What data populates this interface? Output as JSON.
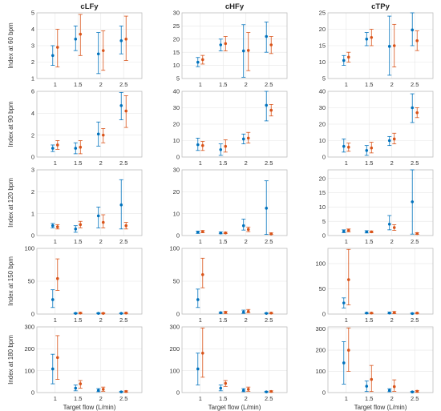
{
  "figure": {
    "colors": {
      "series_a": "#0072BD",
      "series_b": "#D95319"
    }
  },
  "chart_data": [
    {
      "type": "scatter",
      "title": "cLFy",
      "ylabel": "Index at 60 bpm",
      "xlabel": "",
      "x": [
        1,
        1.5,
        2,
        2.5
      ],
      "ylim": [
        1,
        5
      ],
      "yticks": [
        1,
        2,
        3,
        4,
        5
      ],
      "series": [
        {
          "values": [
            2.4,
            3.4,
            2.5,
            3.3
          ],
          "low": [
            1.8,
            2.7,
            1.3,
            2.5
          ],
          "high": [
            3.0,
            4.2,
            3.8,
            4.2
          ]
        },
        {
          "values": [
            2.9,
            3.7,
            2.7,
            3.4
          ],
          "low": [
            1.7,
            2.4,
            1.5,
            2.1
          ],
          "high": [
            4.0,
            4.9,
            3.9,
            4.8
          ]
        }
      ]
    },
    {
      "type": "scatter",
      "title": "cHFy",
      "ylabel": "",
      "xlabel": "",
      "x": [
        1,
        1.5,
        2,
        2.5
      ],
      "ylim": [
        5,
        30
      ],
      "yticks": [
        5,
        10,
        15,
        20,
        25,
        30
      ],
      "series": [
        {
          "values": [
            11.2,
            17.8,
            15.5,
            21.0
          ],
          "low": [
            9.5,
            15.5,
            5.5,
            15.0
          ],
          "high": [
            13.0,
            20.0,
            25.5,
            26.5
          ]
        },
        {
          "values": [
            12.2,
            18.3,
            15.7,
            17.8
          ],
          "low": [
            10.5,
            15.5,
            8.0,
            14.5
          ],
          "high": [
            13.8,
            21.0,
            22.5,
            21.0
          ]
        }
      ]
    },
    {
      "type": "scatter",
      "title": "cTPy",
      "ylabel": "",
      "xlabel": "",
      "x": [
        1,
        1.5,
        2,
        2.5
      ],
      "ylim": [
        5,
        25
      ],
      "yticks": [
        5,
        10,
        15,
        20,
        25
      ],
      "series": [
        {
          "values": [
            10.5,
            17.0,
            14.8,
            19.8
          ],
          "low": [
            9.0,
            15.0,
            6.0,
            15.0
          ],
          "high": [
            12.0,
            19.0,
            24.0,
            25.0
          ]
        },
        {
          "values": [
            11.5,
            17.5,
            15.0,
            16.5
          ],
          "low": [
            10.0,
            15.0,
            8.5,
            13.5
          ],
          "high": [
            13.0,
            20.0,
            21.5,
            19.5
          ]
        }
      ]
    },
    {
      "type": "scatter",
      "title": "",
      "ylabel": "Index at 90 bpm",
      "xlabel": "",
      "x": [
        1,
        1.5,
        2,
        2.5
      ],
      "ylim": [
        0,
        6
      ],
      "yticks": [
        0,
        2,
        4,
        6
      ],
      "series": [
        {
          "values": [
            0.8,
            0.8,
            2.1,
            4.7
          ],
          "low": [
            0.5,
            0.3,
            1.0,
            3.4
          ],
          "high": [
            1.1,
            1.3,
            3.2,
            5.9
          ]
        },
        {
          "values": [
            1.1,
            0.9,
            2.0,
            4.2
          ],
          "low": [
            0.7,
            0.3,
            1.3,
            2.7
          ],
          "high": [
            1.5,
            1.5,
            2.6,
            5.6
          ]
        }
      ]
    },
    {
      "type": "scatter",
      "title": "",
      "ylabel": "",
      "xlabel": "",
      "x": [
        1,
        1.5,
        2,
        2.5
      ],
      "ylim": [
        0,
        40
      ],
      "yticks": [
        0,
        10,
        20,
        30,
        40
      ],
      "series": [
        {
          "values": [
            7.5,
            4.5,
            11.0,
            31.5
          ],
          "low": [
            4.0,
            1.0,
            8.0,
            22.0
          ],
          "high": [
            11.5,
            8.0,
            14.0,
            41.0
          ]
        },
        {
          "values": [
            7.0,
            6.5,
            11.5,
            28.5
          ],
          "low": [
            4.0,
            3.0,
            8.5,
            25.0
          ],
          "high": [
            9.5,
            10.5,
            15.0,
            32.0
          ]
        }
      ]
    },
    {
      "type": "scatter",
      "title": "",
      "ylabel": "",
      "xlabel": "",
      "x": [
        1,
        1.5,
        2,
        2.5
      ],
      "ylim": [
        0,
        40
      ],
      "yticks": [
        0,
        10,
        20,
        30,
        40
      ],
      "series": [
        {
          "values": [
            6.5,
            4.0,
            10.0,
            30.0
          ],
          "low": [
            3.0,
            1.0,
            7.0,
            21.0
          ],
          "high": [
            11.0,
            7.0,
            12.5,
            38.5
          ]
        },
        {
          "values": [
            6.0,
            5.5,
            11.0,
            27.0
          ],
          "low": [
            3.5,
            2.5,
            8.0,
            24.0
          ],
          "high": [
            8.5,
            9.0,
            14.5,
            30.0
          ]
        }
      ]
    },
    {
      "type": "scatter",
      "title": "",
      "ylabel": "Index at 120 bpm",
      "xlabel": "",
      "x": [
        1,
        1.5,
        2,
        2.5
      ],
      "ylim": [
        0,
        3
      ],
      "yticks": [
        0,
        1,
        2,
        3
      ],
      "series": [
        {
          "values": [
            0.45,
            0.3,
            0.9,
            1.4
          ],
          "low": [
            0.35,
            0.15,
            0.35,
            0.3
          ],
          "high": [
            0.55,
            0.45,
            1.3,
            2.55
          ]
        },
        {
          "values": [
            0.4,
            0.5,
            0.6,
            0.45
          ],
          "low": [
            0.3,
            0.35,
            0.35,
            0.3
          ],
          "high": [
            0.5,
            0.65,
            0.95,
            0.6
          ]
        }
      ]
    },
    {
      "type": "scatter",
      "title": "",
      "ylabel": "",
      "xlabel": "",
      "x": [
        1,
        1.5,
        2,
        2.5
      ],
      "ylim": [
        0,
        30
      ],
      "yticks": [
        0,
        10,
        20,
        30
      ],
      "series": [
        {
          "values": [
            1.5,
            1.2,
            4.5,
            12.5
          ],
          "low": [
            1.0,
            0.8,
            2.5,
            0.5
          ],
          "high": [
            2.0,
            1.6,
            7.5,
            25.0
          ]
        },
        {
          "values": [
            1.8,
            1.2,
            2.8,
            0.8
          ],
          "low": [
            1.3,
            0.9,
            1.8,
            0.5
          ],
          "high": [
            2.3,
            1.5,
            3.8,
            1.2
          ]
        }
      ]
    },
    {
      "type": "scatter",
      "title": "",
      "ylabel": "",
      "xlabel": "",
      "x": [
        1,
        1.5,
        2,
        2.5
      ],
      "ylim": [
        0,
        23
      ],
      "yticks": [
        0,
        5,
        10,
        15,
        20
      ],
      "series": [
        {
          "values": [
            1.5,
            1.3,
            4.0,
            11.8
          ],
          "low": [
            1.0,
            0.9,
            2.0,
            0.5
          ],
          "high": [
            2.0,
            1.7,
            7.0,
            23.0
          ]
        },
        {
          "values": [
            1.8,
            1.3,
            2.8,
            0.7
          ],
          "low": [
            1.3,
            1.0,
            1.8,
            0.4
          ],
          "high": [
            2.3,
            1.6,
            3.8,
            1.0
          ]
        }
      ]
    },
    {
      "type": "scatter",
      "title": "",
      "ylabel": "Index at 150 bpm",
      "xlabel": "",
      "x": [
        1,
        1.5,
        2,
        2.5
      ],
      "ylim": [
        0,
        100
      ],
      "yticks": [
        0,
        50,
        100
      ],
      "series": [
        {
          "values": [
            22,
            1,
            1,
            1
          ],
          "low": [
            10,
            0.5,
            0.5,
            0.5
          ],
          "high": [
            37,
            2,
            2,
            1.5
          ]
        },
        {
          "values": [
            54,
            1.5,
            1,
            1.5
          ],
          "low": [
            36,
            0.5,
            0.5,
            0.5
          ],
          "high": [
            84,
            2.5,
            2,
            2.5
          ]
        }
      ]
    },
    {
      "type": "scatter",
      "title": "",
      "ylabel": "",
      "xlabel": "",
      "x": [
        1,
        1.5,
        2,
        2.5
      ],
      "ylim": [
        0,
        100
      ],
      "yticks": [
        0,
        50,
        100
      ],
      "series": [
        {
          "values": [
            22,
            2,
            3,
            1
          ],
          "low": [
            10,
            1,
            1,
            0.5
          ],
          "high": [
            38,
            3,
            6,
            2
          ]
        },
        {
          "values": [
            60,
            2.5,
            4,
            1.5
          ],
          "low": [
            40,
            1,
            2,
            0.5
          ],
          "high": [
            85,
            4,
            7,
            2.5
          ]
        }
      ]
    },
    {
      "type": "scatter",
      "title": "",
      "ylabel": "",
      "xlabel": "",
      "x": [
        1,
        1.5,
        2,
        2.5
      ],
      "ylim": [
        0,
        130
      ],
      "yticks": [
        0,
        50,
        100
      ],
      "series": [
        {
          "values": [
            22,
            2,
            2,
            1
          ],
          "low": [
            12,
            1,
            1,
            0.5
          ],
          "high": [
            32,
            3,
            4,
            2
          ]
        },
        {
          "values": [
            68,
            2,
            3,
            2
          ],
          "low": [
            18,
            1,
            1,
            0.5
          ],
          "high": [
            128,
            3,
            5,
            3
          ]
        }
      ]
    },
    {
      "type": "scatter",
      "title": "",
      "ylabel": "Index at 180 bpm",
      "xlabel": "Target flow (L/min)",
      "x": [
        1,
        1.5,
        2,
        2.5
      ],
      "ylim": [
        0,
        300
      ],
      "yticks": [
        0,
        100,
        200,
        300
      ],
      "series": [
        {
          "values": [
            108,
            20,
            10,
            3
          ],
          "low": [
            40,
            8,
            4,
            1
          ],
          "high": [
            175,
            35,
            18,
            6
          ]
        },
        {
          "values": [
            160,
            40,
            15,
            5
          ],
          "low": [
            60,
            20,
            6,
            2
          ],
          "high": [
            260,
            55,
            25,
            8
          ]
        }
      ]
    },
    {
      "type": "scatter",
      "title": "",
      "ylabel": "",
      "xlabel": "Target flow (L/min)",
      "x": [
        1,
        1.5,
        2,
        2.5
      ],
      "ylim": [
        0,
        300
      ],
      "yticks": [
        0,
        100,
        200,
        300
      ],
      "series": [
        {
          "values": [
            108,
            20,
            10,
            3
          ],
          "low": [
            35,
            8,
            4,
            1
          ],
          "high": [
            180,
            35,
            18,
            6
          ]
        },
        {
          "values": [
            180,
            42,
            15,
            5
          ],
          "low": [
            70,
            28,
            6,
            2
          ],
          "high": [
            295,
            55,
            25,
            8
          ]
        }
      ]
    },
    {
      "type": "scatter",
      "title": "",
      "ylabel": "",
      "xlabel": "Target flow (L/min)",
      "x": [
        1,
        1.5,
        2,
        2.5
      ],
      "ylim": [
        0,
        310
      ],
      "yticks": [
        0,
        100,
        200,
        300
      ],
      "series": [
        {
          "values": [
            140,
            30,
            10,
            3
          ],
          "low": [
            40,
            5,
            4,
            1
          ],
          "high": [
            240,
            55,
            18,
            6
          ]
        },
        {
          "values": [
            200,
            62,
            28,
            6
          ],
          "low": [
            100,
            5,
            6,
            2
          ],
          "high": [
            305,
            128,
            60,
            10
          ]
        }
      ]
    }
  ]
}
